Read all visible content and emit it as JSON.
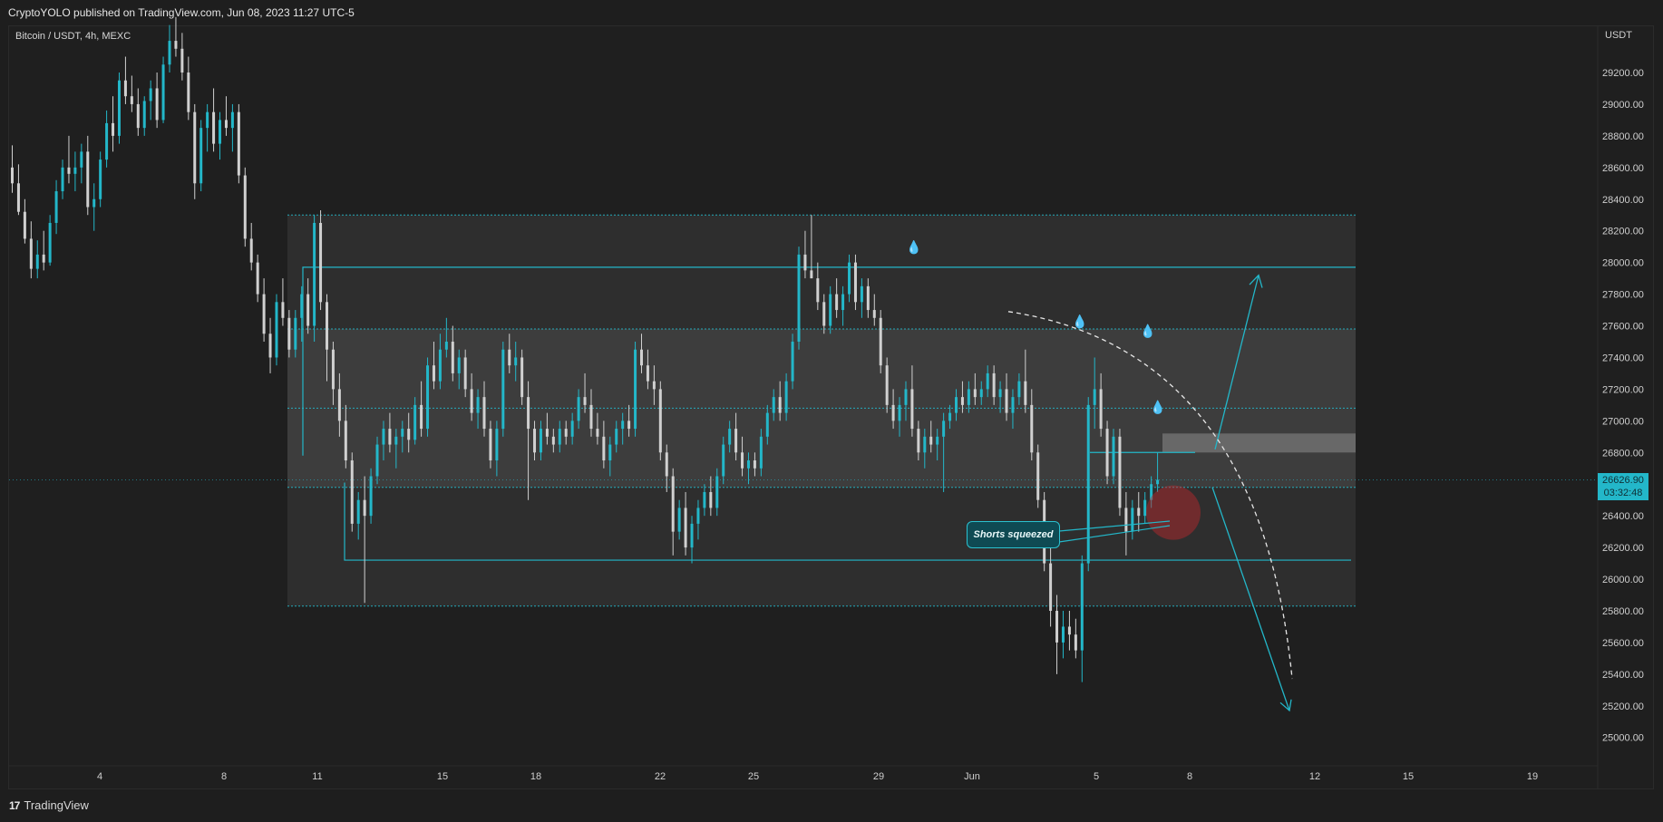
{
  "header": {
    "publisher_text": "CryptoYOLO published on TradingView.com, Jun 08, 2023 11:27 UTC-5"
  },
  "chart": {
    "symbol": "Bitcoin / USDT, 4h, MEXC",
    "currency": "USDT",
    "last_price": "26626.90",
    "countdown": "03:32:48",
    "annotation": "Shorts squeezed"
  },
  "footer": {
    "brand": "TradingView"
  },
  "colors": {
    "background": "#1e1e1e",
    "accent": "#23b7c9",
    "up_candle": "#23b7c9",
    "down_candle": "#d0d0d0"
  },
  "chart_data": {
    "type": "candlestick",
    "title": "Bitcoin / USDT, 4h, MEXC",
    "ylabel": "USDT",
    "ylim": [
      24800,
      29600
    ],
    "y_ticks": [
      "29200.00",
      "29000.00",
      "28800.00",
      "28600.00",
      "28400.00",
      "28200.00",
      "28000.00",
      "27800.00",
      "27600.00",
      "27400.00",
      "27200.00",
      "27000.00",
      "26800.00",
      "26600.00",
      "26400.00",
      "26200.00",
      "26000.00",
      "25800.00",
      "25600.00",
      "25400.00",
      "25200.00",
      "25000.00"
    ],
    "x_ticks": [
      "4",
      "8",
      "11",
      "15",
      "18",
      "22",
      "25",
      "29",
      "Jun",
      "5",
      "8",
      "12",
      "15",
      "19"
    ],
    "series": [
      {
        "candles": [
          [
            28600,
            28740,
            28440,
            28500
          ],
          [
            28500,
            28620,
            28300,
            28320
          ],
          [
            28320,
            28400,
            28120,
            28150
          ],
          [
            28150,
            28260,
            27900,
            27960
          ],
          [
            27960,
            28140,
            27900,
            28050
          ],
          [
            28050,
            28200,
            27950,
            28000
          ],
          [
            28000,
            28300,
            27980,
            28250
          ],
          [
            28250,
            28520,
            28180,
            28450
          ],
          [
            28450,
            28650,
            28400,
            28600
          ],
          [
            28600,
            28800,
            28500,
            28560
          ],
          [
            28560,
            28700,
            28450,
            28600
          ],
          [
            28600,
            28750,
            28500,
            28700
          ],
          [
            28700,
            28800,
            28300,
            28350
          ],
          [
            28350,
            28500,
            28200,
            28400
          ],
          [
            28400,
            28700,
            28350,
            28650
          ],
          [
            28650,
            28960,
            28600,
            28880
          ],
          [
            28880,
            29050,
            28700,
            28800
          ],
          [
            28800,
            29200,
            28750,
            29150
          ],
          [
            29150,
            29300,
            29000,
            29050
          ],
          [
            29050,
            29180,
            28950,
            29000
          ],
          [
            29000,
            29100,
            28800,
            28850
          ],
          [
            28850,
            29050,
            28800,
            29020
          ],
          [
            29020,
            29150,
            28900,
            29100
          ],
          [
            29100,
            29200,
            28850,
            28900
          ],
          [
            28900,
            29300,
            28880,
            29250
          ],
          [
            29250,
            29500,
            29200,
            29400
          ],
          [
            29400,
            29550,
            29300,
            29350
          ],
          [
            29350,
            29450,
            29150,
            29200
          ],
          [
            29200,
            29300,
            28900,
            28950
          ],
          [
            28950,
            29000,
            28400,
            28500
          ],
          [
            28500,
            28900,
            28450,
            28850
          ],
          [
            28850,
            29000,
            28700,
            28950
          ],
          [
            28950,
            29100,
            28700,
            28750
          ],
          [
            28750,
            28950,
            28650,
            28900
          ],
          [
            28900,
            29050,
            28800,
            28850
          ],
          [
            28850,
            29000,
            28700,
            28950
          ],
          [
            28950,
            29000,
            28500,
            28550
          ],
          [
            28550,
            28600,
            28100,
            28150
          ],
          [
            28150,
            28250,
            27950,
            28000
          ],
          [
            28000,
            28050,
            27750,
            27800
          ],
          [
            27800,
            27900,
            27500,
            27550
          ],
          [
            27550,
            27650,
            27300,
            27400
          ],
          [
            27400,
            27800,
            27350,
            27750
          ],
          [
            27750,
            27900,
            27600,
            27650
          ],
          [
            27650,
            27700,
            27400,
            27450
          ],
          [
            27450,
            27700,
            27400,
            27650
          ],
          [
            27650,
            27850,
            27500,
            27800
          ],
          [
            27800,
            27900,
            27550,
            27600
          ],
          [
            27600,
            28300,
            27500,
            28250
          ],
          [
            28250,
            28330,
            27700,
            27750
          ],
          [
            27750,
            27800,
            27250,
            27450
          ],
          [
            27450,
            27500,
            27100,
            27200
          ],
          [
            27200,
            27300,
            26900,
            27000
          ],
          [
            27000,
            27100,
            26700,
            26750
          ],
          [
            26750,
            26800,
            26300,
            26350
          ],
          [
            26350,
            26550,
            26250,
            26500
          ],
          [
            26500,
            26650,
            25850,
            26400
          ],
          [
            26400,
            26700,
            26350,
            26650
          ],
          [
            26650,
            26900,
            26600,
            26850
          ],
          [
            26850,
            27000,
            26750,
            26950
          ],
          [
            26950,
            27050,
            26800,
            26850
          ],
          [
            26850,
            26950,
            26700,
            26900
          ],
          [
            26900,
            27000,
            26800,
            26950
          ],
          [
            26950,
            27050,
            26800,
            26880
          ],
          [
            26880,
            27150,
            26850,
            27100
          ],
          [
            27100,
            27250,
            26900,
            26950
          ],
          [
            26950,
            27400,
            26900,
            27350
          ],
          [
            27350,
            27500,
            27200,
            27250
          ],
          [
            27250,
            27550,
            27200,
            27450
          ],
          [
            27450,
            27650,
            27400,
            27500
          ],
          [
            27500,
            27600,
            27250,
            27300
          ],
          [
            27300,
            27450,
            27200,
            27400
          ],
          [
            27400,
            27450,
            27150,
            27200
          ],
          [
            27200,
            27300,
            27000,
            27050
          ],
          [
            27050,
            27200,
            26950,
            27150
          ],
          [
            27150,
            27250,
            26900,
            26950
          ],
          [
            26950,
            27000,
            26700,
            26750
          ],
          [
            26750,
            27000,
            26650,
            26950
          ],
          [
            26950,
            27500,
            26900,
            27450
          ],
          [
            27450,
            27550,
            27300,
            27350
          ],
          [
            27350,
            27500,
            27250,
            27400
          ],
          [
            27400,
            27450,
            27100,
            27150
          ],
          [
            27150,
            27250,
            26500,
            26950
          ],
          [
            26950,
            27000,
            26750,
            26800
          ],
          [
            26800,
            27000,
            26750,
            26950
          ],
          [
            26950,
            27050,
            26850,
            26900
          ],
          [
            26900,
            26950,
            26800,
            26850
          ],
          [
            26850,
            27000,
            26800,
            26950
          ],
          [
            26950,
            27000,
            26850,
            26900
          ],
          [
            26900,
            27050,
            26850,
            27000
          ],
          [
            27000,
            27200,
            26950,
            27150
          ],
          [
            27150,
            27300,
            27050,
            27100
          ],
          [
            27100,
            27200,
            26900,
            26950
          ],
          [
            26950,
            27050,
            26850,
            26900
          ],
          [
            26900,
            27000,
            26700,
            26750
          ],
          [
            26750,
            26900,
            26650,
            26850
          ],
          [
            26850,
            27000,
            26800,
            26950
          ],
          [
            26950,
            27050,
            26850,
            27000
          ],
          [
            27000,
            27100,
            26900,
            26950
          ],
          [
            26950,
            27500,
            26900,
            27450
          ],
          [
            27450,
            27550,
            27300,
            27350
          ],
          [
            27350,
            27450,
            27200,
            27250
          ],
          [
            27250,
            27350,
            27100,
            27200
          ],
          [
            27200,
            27250,
            26750,
            26800
          ],
          [
            26800,
            26850,
            26550,
            26650
          ],
          [
            26650,
            26700,
            26150,
            26300
          ],
          [
            26300,
            26500,
            26250,
            26450
          ],
          [
            26450,
            26550,
            26150,
            26200
          ],
          [
            26200,
            26400,
            26100,
            26350
          ],
          [
            26350,
            26500,
            26250,
            26450
          ],
          [
            26450,
            26600,
            26400,
            26550
          ],
          [
            26550,
            26650,
            26400,
            26450
          ],
          [
            26450,
            26700,
            26400,
            26650
          ],
          [
            26650,
            26900,
            26600,
            26850
          ],
          [
            26850,
            27000,
            26800,
            26950
          ],
          [
            26950,
            27050,
            26750,
            26800
          ],
          [
            26800,
            26900,
            26650,
            26700
          ],
          [
            26700,
            26800,
            26600,
            26750
          ],
          [
            26750,
            26800,
            26650,
            26700
          ],
          [
            26700,
            26950,
            26650,
            26900
          ],
          [
            26900,
            27100,
            26850,
            27050
          ],
          [
            27050,
            27200,
            27000,
            27150
          ],
          [
            27150,
            27250,
            27000,
            27050
          ],
          [
            27050,
            27300,
            27000,
            27250
          ],
          [
            27250,
            27550,
            27200,
            27500
          ],
          [
            27500,
            28100,
            27450,
            28050
          ],
          [
            28050,
            28200,
            27900,
            27950
          ],
          [
            27950,
            28300,
            27900,
            27900
          ],
          [
            27900,
            28000,
            27700,
            27750
          ],
          [
            27750,
            27800,
            27550,
            27600
          ],
          [
            27600,
            27850,
            27550,
            27800
          ],
          [
            27800,
            27900,
            27650,
            27700
          ],
          [
            27700,
            27850,
            27600,
            27800
          ],
          [
            27800,
            28050,
            27750,
            28000
          ],
          [
            28000,
            28050,
            27700,
            27750
          ],
          [
            27750,
            27900,
            27650,
            27850
          ],
          [
            27850,
            27900,
            27650,
            27700
          ],
          [
            27700,
            27800,
            27600,
            27650
          ],
          [
            27650,
            27700,
            27300,
            27350
          ],
          [
            27350,
            27400,
            27050,
            27100
          ],
          [
            27100,
            27200,
            26950,
            27000
          ],
          [
            27000,
            27150,
            26900,
            27100
          ],
          [
            27100,
            27250,
            27000,
            27200
          ],
          [
            27200,
            27350,
            26900,
            26950
          ],
          [
            26950,
            27000,
            26750,
            26800
          ],
          [
            26800,
            26950,
            26700,
            26900
          ],
          [
            26900,
            27000,
            26800,
            26850
          ],
          [
            26850,
            26950,
            26750,
            26900
          ],
          [
            26900,
            27050,
            26550,
            27000
          ],
          [
            27000,
            27100,
            26950,
            27050
          ],
          [
            27050,
            27200,
            27000,
            27150
          ],
          [
            27150,
            27250,
            27050,
            27100
          ],
          [
            27100,
            27250,
            27050,
            27200
          ],
          [
            27200,
            27300,
            27100,
            27150
          ],
          [
            27150,
            27250,
            27100,
            27200
          ],
          [
            27200,
            27350,
            27150,
            27300
          ],
          [
            27300,
            27350,
            27100,
            27150
          ],
          [
            27150,
            27250,
            27050,
            27200
          ],
          [
            27200,
            27300,
            27000,
            27050
          ],
          [
            27050,
            27200,
            26950,
            27150
          ],
          [
            27150,
            27300,
            27100,
            27250
          ],
          [
            27250,
            27450,
            27050,
            27100
          ],
          [
            27100,
            27200,
            26750,
            26800
          ],
          [
            26800,
            26850,
            26450,
            26500
          ],
          [
            26500,
            26550,
            26050,
            26100
          ],
          [
            26100,
            26200,
            25700,
            25800
          ],
          [
            25800,
            25900,
            25400,
            25600
          ],
          [
            25600,
            25800,
            25500,
            25700
          ],
          [
            25700,
            25800,
            25550,
            25650
          ],
          [
            25650,
            25750,
            25500,
            25550
          ],
          [
            25550,
            26150,
            25350,
            26100
          ],
          [
            26100,
            27150,
            26050,
            27100
          ],
          [
            27100,
            27400,
            26950,
            27200
          ],
          [
            27200,
            27300,
            26900,
            26950
          ],
          [
            26950,
            27000,
            26600,
            26650
          ],
          [
            26650,
            26950,
            26600,
            26900
          ],
          [
            26900,
            26950,
            26400,
            26450
          ],
          [
            26450,
            26550,
            26150,
            26300
          ],
          [
            26300,
            26500,
            26250,
            26450
          ],
          [
            26450,
            26550,
            26300,
            26400
          ],
          [
            26400,
            26550,
            26350,
            26500
          ],
          [
            26500,
            26650,
            26450,
            26600
          ],
          [
            26600,
            26800,
            26550,
            26627
          ]
        ]
      }
    ]
  }
}
